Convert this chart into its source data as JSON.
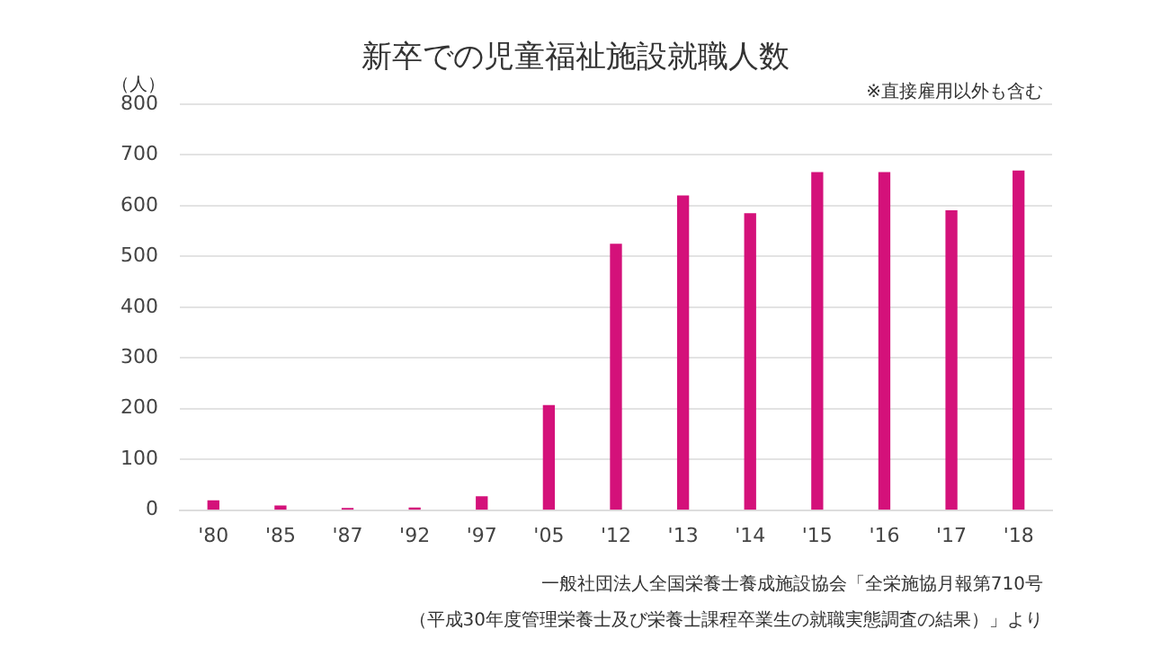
{
  "chart_data": {
    "type": "bar",
    "title": "新卒での児童福祉施設就職人数",
    "ylabel": "（人）",
    "annotations": [
      "※直接雇用以外も含む",
      "一般社団法人全国栄養士養成施設協会「全栄施協月報第710号",
      "（平成30年度管理栄養士及び栄養士課程卒業生の就職実態調査の結果）」より"
    ],
    "categories": [
      "'80",
      "'85",
      "'87",
      "'92",
      "'97",
      "'05",
      "'12",
      "'13",
      "'14",
      "'15",
      "'16",
      "'17",
      "'18"
    ],
    "values": [
      18,
      8,
      3,
      4,
      26,
      206,
      524,
      619,
      584,
      665,
      665,
      590,
      668
    ],
    "color": "#d4117a",
    "ylim": [
      0,
      800
    ],
    "yticks": [
      0,
      100,
      200,
      300,
      400,
      500,
      600,
      700,
      800
    ],
    "grid": "y",
    "legend": false
  }
}
